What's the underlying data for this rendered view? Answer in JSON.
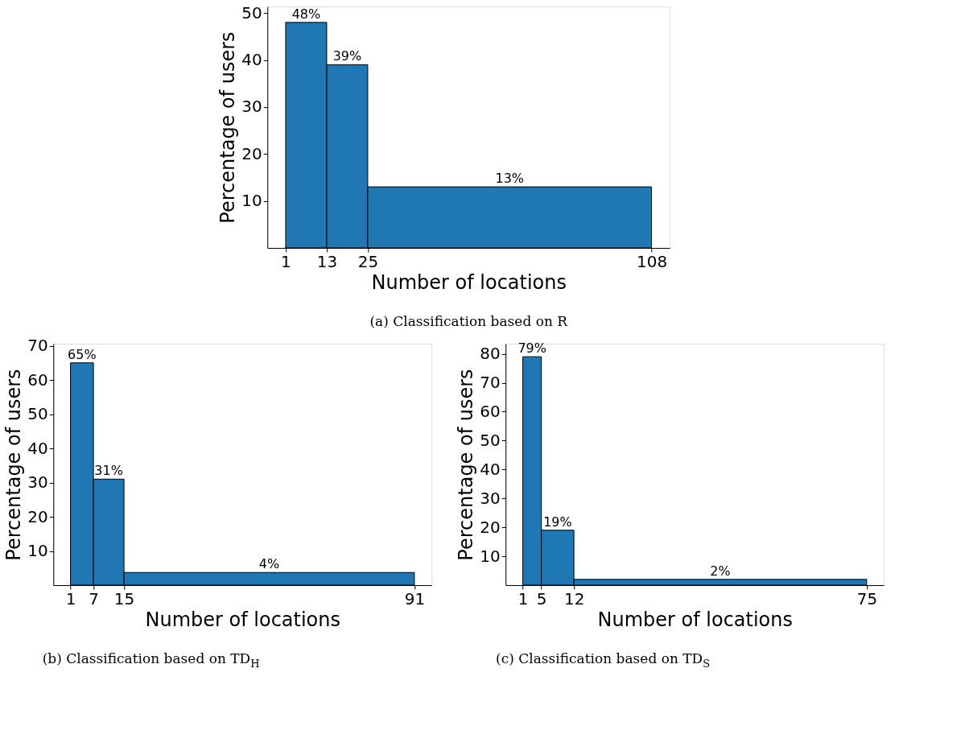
{
  "chart_data": [
    {
      "type": "histogram",
      "bins": [
        1,
        13,
        25,
        108
      ],
      "values": [
        48,
        39,
        13
      ],
      "value_labels": [
        "48%",
        "39%",
        "13%"
      ],
      "color": "#1f77b4",
      "xlabel": "Number of locations",
      "ylabel": "Percentage of users",
      "xlim": [
        -4.35,
        113.35
      ],
      "xticks": [
        1,
        13,
        25,
        108
      ],
      "ylim": [
        0,
        51.4
      ],
      "yticks": [
        10,
        20,
        30,
        40,
        50
      ],
      "grid": false,
      "annotations": [
        "(a) Classification based on R"
      ]
    },
    {
      "type": "histogram",
      "bins": [
        1,
        7,
        15,
        91
      ],
      "values": [
        65,
        31,
        3.7
      ],
      "value_labels": [
        "65%",
        "31%",
        "4%"
      ],
      "color": "#1f77b4",
      "xlabel": "Number of locations",
      "ylabel": "Percentage of users",
      "xlim": [
        -3.5,
        95.5
      ],
      "xticks": [
        1,
        7,
        15,
        91
      ],
      "ylim": [
        0,
        70.6
      ],
      "yticks": [
        10,
        20,
        30,
        40,
        50,
        60,
        70
      ],
      "grid": false,
      "annotations": [
        "(b) Classification based on TD$_{H}$"
      ]
    },
    {
      "type": "histogram",
      "bins": [
        1,
        5,
        12,
        75
      ],
      "values": [
        79,
        19,
        2
      ],
      "value_labels": [
        "79%",
        "19%",
        "2%"
      ],
      "color": "#1f77b4",
      "xlabel": "Number of locations",
      "ylabel": "Percentage of users",
      "xlim": [
        -2.7,
        78.7
      ],
      "xticks": [
        1,
        5,
        12,
        75
      ],
      "ylim": [
        0,
        83.5
      ],
      "yticks": [
        10,
        20,
        30,
        40,
        50,
        60,
        70,
        80
      ],
      "grid": false,
      "annotations": [
        "(c) Classification based on TD$_{S}$"
      ]
    }
  ]
}
